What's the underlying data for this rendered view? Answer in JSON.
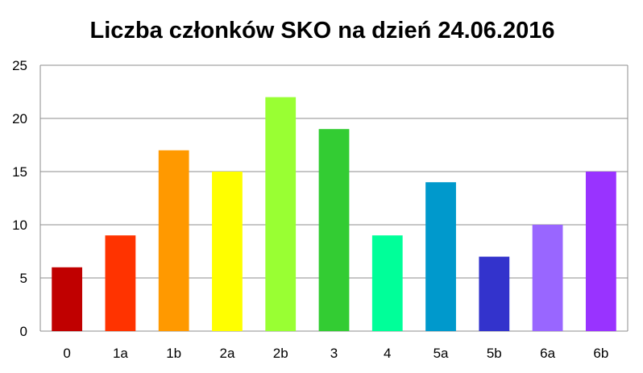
{
  "chart_data": {
    "type": "bar",
    "title": "Liczba członków SKO na dzień 24.06.2016",
    "xlabel": "",
    "ylabel": "",
    "categories": [
      "0",
      "1a",
      "1b",
      "2a",
      "2b",
      "3",
      "4",
      "5a",
      "5b",
      "6a",
      "6b"
    ],
    "values": [
      6,
      9,
      17,
      15,
      22,
      19,
      9,
      14,
      7,
      10,
      15
    ],
    "colors": [
      "#c00000",
      "#ff3300",
      "#ff9900",
      "#ffff00",
      "#99ff33",
      "#33cc33",
      "#00ff99",
      "#0099cc",
      "#3333cc",
      "#9966ff",
      "#9933ff"
    ],
    "ylim": [
      0,
      25
    ],
    "yticks": [
      0,
      5,
      10,
      15,
      20,
      25
    ],
    "grid": true,
    "legend": "none"
  }
}
